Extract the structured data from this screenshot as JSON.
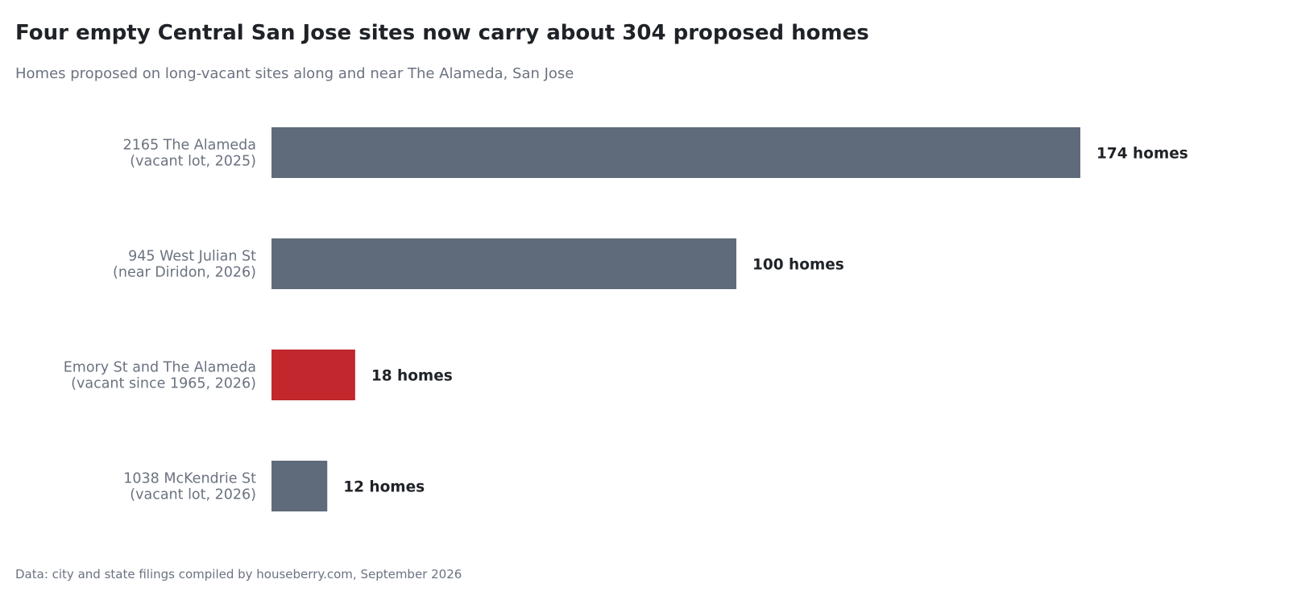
{
  "title": "Four empty Central San Jose sites now carry about 304 proposed homes",
  "subtitle": "Homes proposed on long-vacant sites along and near The Alameda, San Jose",
  "source": "Data: city and state filings compiled by houseberry.com, September 2026",
  "colors": {
    "default_bar": "#5f6b7a",
    "highlight_bar": "#c1272d"
  },
  "chart_data": {
    "type": "bar",
    "orientation": "horizontal",
    "categories": [
      [
        "2165 The Alameda",
        "(vacant lot, 2025)"
      ],
      [
        "945 West Julian St",
        "(near Diridon, 2026)"
      ],
      [
        "Emory St and The Alameda",
        "(vacant since 1965, 2026)"
      ],
      [
        "1038 McKendrie St",
        "(vacant lot, 2026)"
      ]
    ],
    "values": [
      174,
      100,
      18,
      12
    ],
    "value_labels": [
      "174 homes",
      "100 homes",
      "18 homes",
      "12 homes"
    ],
    "highlight_index": 2,
    "xlim": [
      0,
      174
    ],
    "grid": false,
    "legend": "none"
  }
}
